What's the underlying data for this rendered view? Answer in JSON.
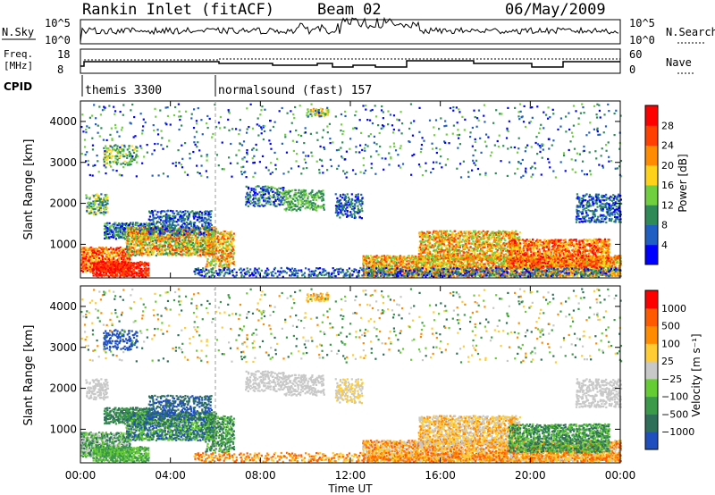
{
  "header": {
    "title": "Rankin Inlet (fitACF)",
    "beam": "Beam 02",
    "date": "06/May/2009"
  },
  "strips": {
    "nsky_label": "N.Sky",
    "nsky_ticks": [
      "10^5",
      "10^0"
    ],
    "nsearch_ticks": [
      "10^5",
      "10^0"
    ],
    "nsearch_label": "N.Search",
    "freq_label_1": "Freq.",
    "freq_label_2": "[MHz]",
    "freq_ticks": [
      "18",
      "8"
    ],
    "nave_ticks": [
      "60",
      "0"
    ],
    "nave_label": "Nave",
    "cpid_label": "CPID",
    "cpid_modes": [
      {
        "name": "themis 3300",
        "start_hour": 0
      },
      {
        "name": "normalsound (fast) 157",
        "start_hour": 6
      }
    ]
  },
  "chart_data": [
    {
      "type": "heatmap",
      "name": "power-panel",
      "ylabel": "Slant Range [km]",
      "ylim": [
        180,
        4500
      ],
      "yticks": [
        "1000",
        "2000",
        "3000",
        "4000"
      ],
      "xlim_hours": [
        0,
        24
      ],
      "colorbar": {
        "label": "Power [dB]",
        "ticks": [
          "28",
          "24",
          "20",
          "16",
          "12",
          "8",
          "4"
        ],
        "colors": [
          "#0000ff",
          "#1f5fc4",
          "#2e8b57",
          "#6fcf3f",
          "#ffd21a",
          "#ff8c00",
          "#ff4000",
          "#ff0000"
        ]
      }
    },
    {
      "type": "heatmap",
      "name": "velocity-panel",
      "ylabel": "Slant Range [km]",
      "ylim": [
        180,
        4500
      ],
      "yticks": [
        "1000",
        "2000",
        "3000",
        "4000"
      ],
      "xlim_hours": [
        0,
        24
      ],
      "colorbar": {
        "label": "Velocity [m s⁻¹]",
        "ticks": [
          "1000",
          "500",
          "100",
          "25",
          "−25",
          "−100",
          "−500",
          "−1000"
        ],
        "colors": [
          "#1f4fbf",
          "#2e6f5a",
          "#3a9a4a",
          "#66cc33",
          "#c8c8c8",
          "#ffcc33",
          "#ff8c00",
          "#ff5a00",
          "#ff0000"
        ]
      }
    }
  ],
  "xaxis": {
    "ticks": [
      "00:00",
      "04:00",
      "08:00",
      "12:00",
      "16:00",
      "20:00",
      "00:00"
    ],
    "label": "Time UT"
  }
}
